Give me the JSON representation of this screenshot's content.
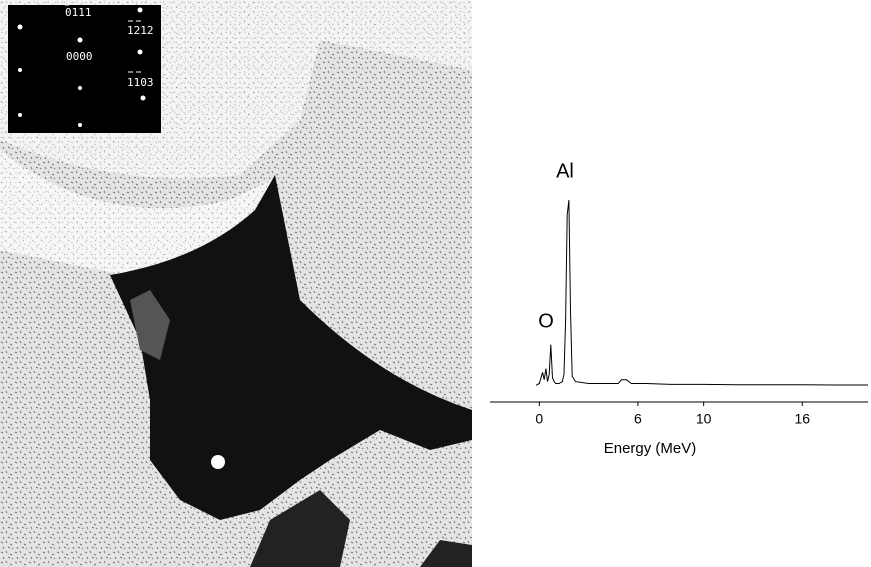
{
  "image": {
    "inset_labels": [
      "0111",
      "1212",
      "0000",
      "1103"
    ]
  },
  "chart_data": {
    "type": "line",
    "xlabel": "Energy (MeV)",
    "annotations": [
      "Al",
      "O"
    ],
    "x": [
      -0.2,
      0,
      0.2,
      0.3,
      0.4,
      0.5,
      0.6,
      0.7,
      0.8,
      0.9,
      1.0,
      1.2,
      1.4,
      1.5,
      1.6,
      1.7,
      1.8,
      1.9,
      2.0,
      2.2,
      3,
      4,
      4.8,
      5.0,
      5.3,
      5.6,
      6.5,
      8,
      10,
      12,
      14,
      16,
      18,
      20
    ],
    "values": [
      0,
      1,
      7,
      3,
      9,
      2,
      6,
      22,
      4,
      2,
      1,
      1,
      2,
      6,
      35,
      92,
      100,
      40,
      5,
      2,
      1,
      1,
      1,
      3,
      3,
      1,
      1,
      0.5,
      0.5,
      0.3,
      0.3,
      0.3,
      0.2,
      0.2
    ],
    "color": "#000000",
    "xlim": [
      -3,
      20
    ],
    "ylim": [
      -9,
      100
    ],
    "xticks": [
      0,
      6,
      10,
      16
    ]
  }
}
